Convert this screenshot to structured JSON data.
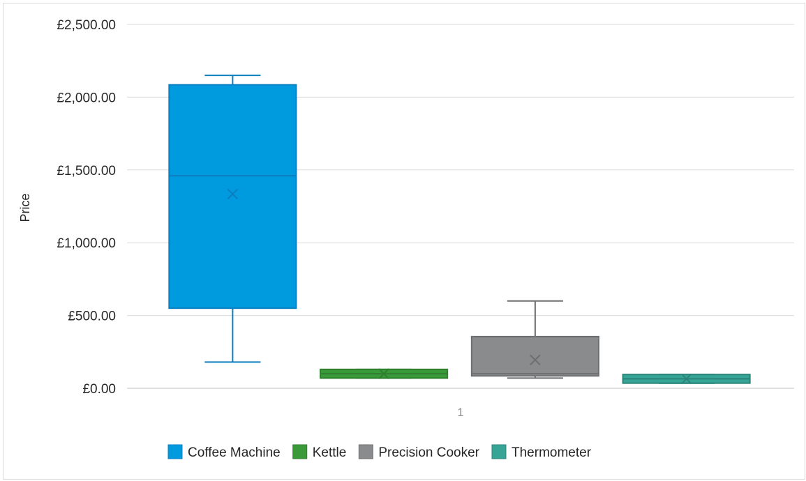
{
  "chart_data": {
    "type": "box",
    "title": "",
    "xlabel": "",
    "ylabel": "Price",
    "ylim": [
      0,
      2500
    ],
    "yticks": [
      0,
      500,
      1000,
      1500,
      2000,
      2500
    ],
    "ytick_labels": [
      "£0.00",
      "£500.00",
      "£1,000.00",
      "£1,500.00",
      "£2,000.00",
      "£2,500.00"
    ],
    "categories": [
      "1"
    ],
    "grid": true,
    "legend_position": "bottom",
    "series": [
      {
        "name": "Coffee Machine",
        "color": "#009ade",
        "stroke": "#0b7fbf",
        "min": 180,
        "q1": 550,
        "median": 1460,
        "q3": 2085,
        "max": 2150,
        "mean": 1335
      },
      {
        "name": "Kettle",
        "color": "#3a9a3a",
        "stroke": "#2f7f2f",
        "min": 70,
        "q1": 70,
        "median": 100,
        "q3": 130,
        "max": 130,
        "mean": 100
      },
      {
        "name": "Precision Cooker",
        "color": "#8a8b8d",
        "stroke": "#6d6e70",
        "min": 70,
        "q1": 85,
        "median": 100,
        "q3": 355,
        "max": 600,
        "mean": 195
      },
      {
        "name": "Thermometer",
        "color": "#36a596",
        "stroke": "#2a8579",
        "min": 35,
        "q1": 35,
        "median": 65,
        "q3": 95,
        "max": 95,
        "mean": 65
      }
    ]
  }
}
